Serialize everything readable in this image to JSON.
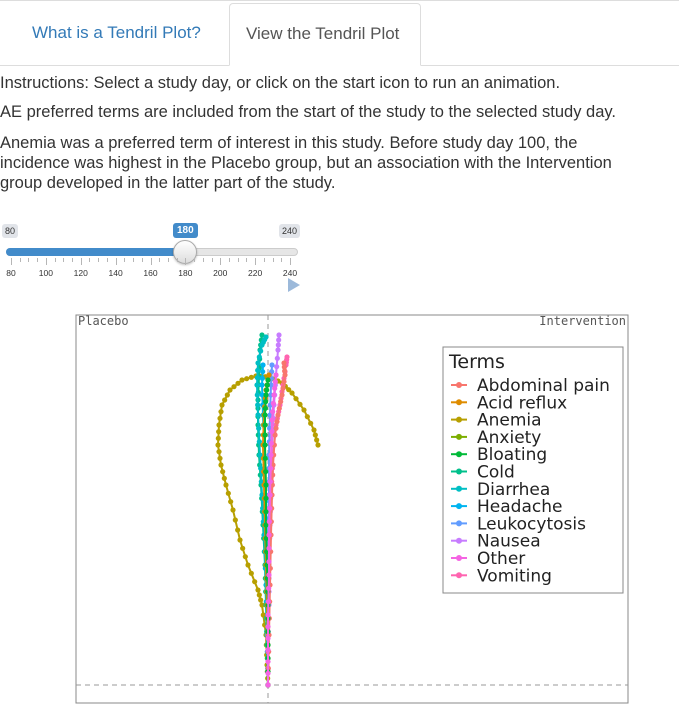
{
  "tabs": [
    {
      "label": "What is a Tendril Plot?",
      "active": false
    },
    {
      "label": "View the Tendril Plot",
      "active": true
    }
  ],
  "instructions": {
    "line1": "Instructions: Select a study day, or click on the start icon to run an animation.",
    "line2": "AE preferred terms are included from the start of the study to the selected study day.",
    "line3a": "Anemia was a preferred term of interest in this study. Before study day 100, the",
    "line3b": "incidence was highest in the Placebo group, but an association with the Intervention",
    "line3c": "group developed in the latter part of the study."
  },
  "slider": {
    "min": 80,
    "max": 240,
    "value": 180,
    "min_label": "80",
    "max_label": "240",
    "value_label": "180",
    "ticks": [
      "80",
      "100",
      "120",
      "140",
      "160",
      "180",
      "200",
      "220",
      "240"
    ],
    "play_icon": "play-triangle-icon"
  },
  "plot": {
    "left_label": "Placebo",
    "right_label": "Intervention",
    "legend_title": "Terms",
    "legend": [
      {
        "term": "Abdominal pain",
        "color": "#F8766D"
      },
      {
        "term": "Acid reflux",
        "color": "#DE8C00"
      },
      {
        "term": "Anemia",
        "color": "#B79F00"
      },
      {
        "term": "Anxiety",
        "color": "#7CAE00"
      },
      {
        "term": "Bloating",
        "color": "#00BA38"
      },
      {
        "term": "Cold",
        "color": "#00C08B"
      },
      {
        "term": "Diarrhea",
        "color": "#00BFC4"
      },
      {
        "term": "Headache",
        "color": "#00B4F0"
      },
      {
        "term": "Leukocytosis",
        "color": "#619CFF"
      },
      {
        "term": "Nausea",
        "color": "#C77CFF"
      },
      {
        "term": "Other",
        "color": "#F564E3"
      },
      {
        "term": "Vomiting",
        "color": "#FF64B0"
      }
    ]
  }
}
